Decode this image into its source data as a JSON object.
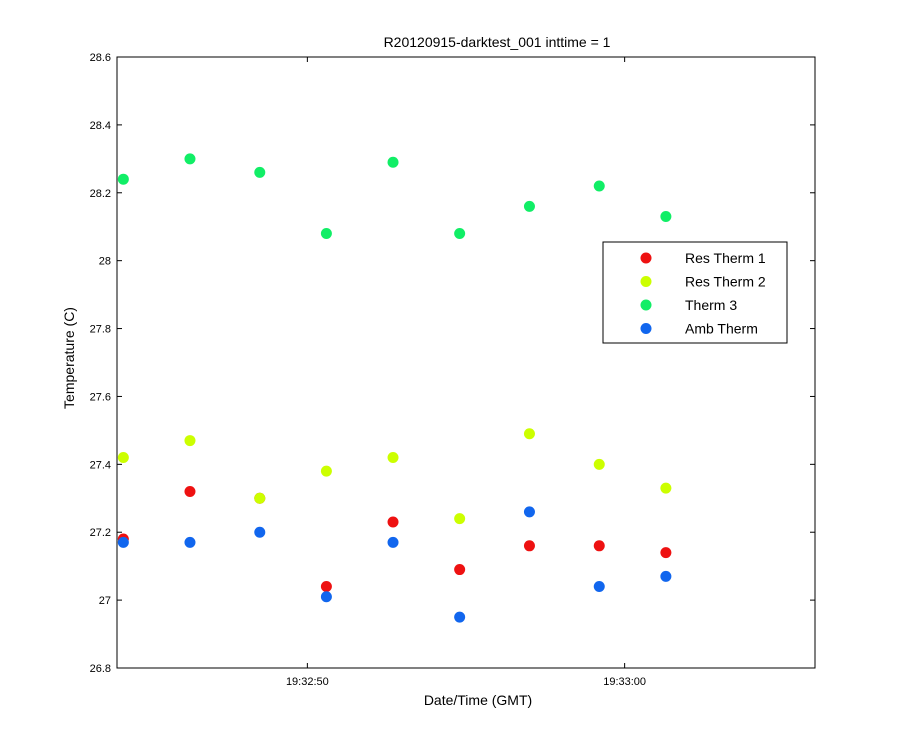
{
  "chart_data": {
    "type": "scatter",
    "title": "R20120915-darktest_001 inttime = 1",
    "xlabel": "Date/Time (GMT)",
    "ylabel": "Temperature (C)",
    "xlim": [
      "19:32:44",
      "19:33:06"
    ],
    "ylim": [
      26.8,
      28.6
    ],
    "x_ticks": [
      "19:32:50",
      "19:33:00"
    ],
    "y_ticks": [
      "26.8",
      "27",
      "27.2",
      "27.4",
      "27.6",
      "27.8",
      "28",
      "28.2",
      "28.4",
      "28.6"
    ],
    "grid": false,
    "legend_position": "right",
    "x": [
      "19:32:44.2",
      "19:32:46.3",
      "19:32:48.5",
      "19:32:50.6",
      "19:32:52.7",
      "19:32:54.8",
      "19:32:57.0",
      "19:32:59.2",
      "19:33:01.3"
    ],
    "series": [
      {
        "name": "Res Therm 1",
        "color": "#ee1111",
        "values": [
          27.18,
          27.32,
          27.3,
          27.04,
          27.23,
          27.09,
          27.16,
          27.16,
          27.14
        ]
      },
      {
        "name": "Res Therm 2",
        "color": "#ccff00",
        "values": [
          27.42,
          27.47,
          27.3,
          27.38,
          27.42,
          27.24,
          27.49,
          27.4,
          27.33
        ]
      },
      {
        "name": "Therm 3",
        "color": "#11ee66",
        "values": [
          28.24,
          28.3,
          28.26,
          28.08,
          28.29,
          28.08,
          28.16,
          28.22,
          28.13
        ]
      },
      {
        "name": "Amb Therm",
        "color": "#1166ee",
        "values": [
          27.17,
          27.17,
          27.2,
          27.01,
          27.17,
          26.95,
          27.26,
          27.04,
          27.07
        ]
      }
    ]
  }
}
